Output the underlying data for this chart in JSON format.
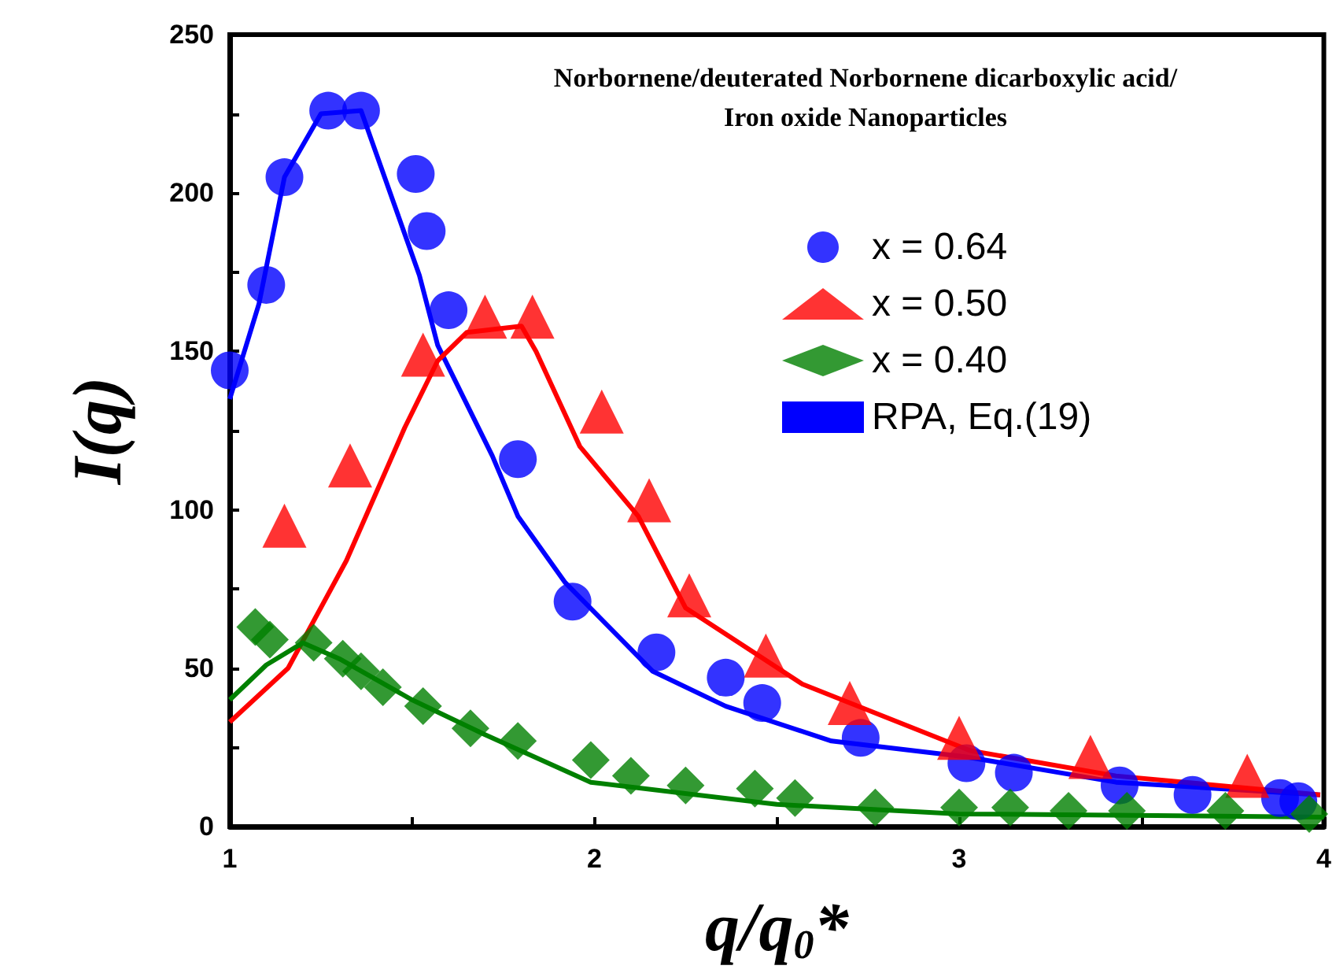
{
  "chart_data": {
    "type": "scatter",
    "title": "Norbornene/deuterated Norbornene dicarboxylic acid/\nIron oxide Nanoparticles",
    "xlabel": "q/q$_{0}$*",
    "ylabel": "I(q)",
    "xlim": [
      1,
      4
    ],
    "xticks": [
      1,
      {
        "value": 1.5,
        "label": null
      },
      2,
      {
        "value": 2.5,
        "label": null
      },
      3,
      {
        "value": 3.5,
        "label": null
      },
      4
    ],
    "ylim": [
      0,
      250
    ],
    "yticks": [
      0,
      {
        "value": 25,
        "label": null
      },
      50,
      {
        "value": 75,
        "label": null
      },
      100,
      {
        "value": 125,
        "label": null
      },
      150,
      {
        "value": 175,
        "label": null
      },
      200,
      {
        "value": 225,
        "label": null
      },
      250
    ],
    "grid": false,
    "legend": "top right",
    "series": [
      {
        "name": "x = 0.64",
        "color": "#0000ff",
        "marker": "circle",
        "x": [
          1.0,
          1.1,
          1.15,
          1.27,
          1.36,
          1.51,
          1.54,
          1.6,
          1.79,
          1.94,
          2.17,
          2.36,
          2.46,
          2.73,
          3.02,
          3.15,
          3.44,
          3.64,
          3.88,
          3.93
        ],
        "values": [
          144,
          171,
          205,
          226,
          226,
          206,
          188,
          163,
          116,
          71,
          55,
          47,
          39,
          28,
          20,
          17,
          13,
          10,
          9,
          8
        ]
      },
      {
        "name": "x = 0.50",
        "color": "#ff0000",
        "marker": "triangle",
        "x": [
          1.15,
          1.33,
          1.53,
          1.7,
          1.83,
          2.02,
          2.15,
          2.26,
          2.47,
          2.7,
          3.0,
          3.36,
          3.79
        ],
        "values": [
          95,
          114,
          149,
          161,
          161,
          131,
          103,
          73,
          54,
          39,
          28,
          22,
          16
        ]
      },
      {
        "name": "x = 0.40",
        "color": "#008000",
        "marker": "diamond",
        "x": [
          1.07,
          1.11,
          1.23,
          1.31,
          1.36,
          1.42,
          1.53,
          1.66,
          1.79,
          1.99,
          2.1,
          2.25,
          2.44,
          2.55,
          2.77,
          3.0,
          3.14,
          3.3,
          3.46,
          3.73,
          3.96
        ],
        "values": [
          63,
          59,
          58,
          53,
          49,
          44,
          38,
          31,
          27,
          21,
          16,
          13,
          12,
          9,
          6,
          6,
          6,
          5,
          5,
          5,
          4
        ]
      },
      {
        "name": "RPA, Eq.(19)",
        "type": "line",
        "color": "#0000ff",
        "marker": "none",
        "line_style": "solid",
        "x": [
          1.0,
          1.08,
          1.15,
          1.25,
          1.36,
          1.52,
          1.57,
          1.72,
          1.79,
          1.92,
          2.16,
          2.36,
          2.65,
          3.02,
          3.43,
          3.99
        ],
        "values": [
          135,
          165,
          205,
          225,
          226,
          174,
          152,
          117,
          98,
          77,
          49,
          38,
          27,
          22,
          14,
          10
        ]
      },
      {
        "type": "line",
        "color": "#ff0000",
        "marker": "none",
        "line_style": "solid",
        "x": [
          1.0,
          1.16,
          1.32,
          1.48,
          1.57,
          1.65,
          1.8,
          1.84,
          1.96,
          2.12,
          2.25,
          2.57,
          3.03,
          3.43,
          3.99
        ],
        "values": [
          33,
          50,
          84,
          126,
          147,
          156,
          158,
          150,
          120,
          98,
          69,
          45,
          24,
          16,
          10
        ]
      },
      {
        "type": "line",
        "color": "#008000",
        "marker": "none",
        "line_style": "solid",
        "x": [
          1.0,
          1.1,
          1.2,
          1.3,
          1.5,
          1.7,
          1.99,
          2.5,
          3.0,
          4.0
        ],
        "values": [
          40,
          51,
          58,
          53,
          40,
          29,
          14,
          7,
          4,
          3
        ]
      }
    ]
  }
}
